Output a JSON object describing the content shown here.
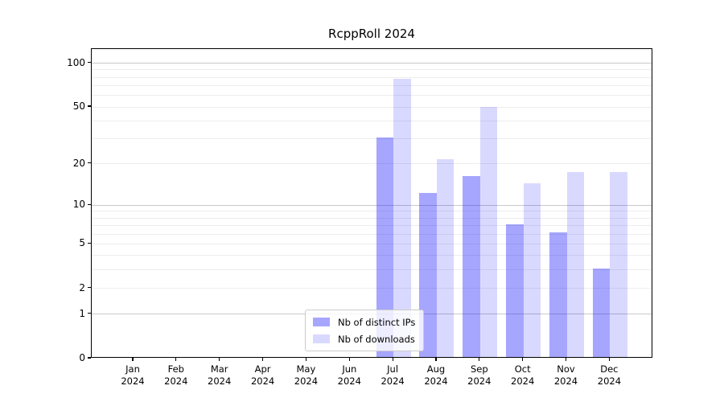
{
  "chart_data": {
    "type": "bar",
    "title": "RcppRoll 2024",
    "categories": [
      "Jan",
      "Feb",
      "Mar",
      "Apr",
      "May",
      "Jun",
      "Jul",
      "Aug",
      "Sep",
      "Oct",
      "Nov",
      "Dec"
    ],
    "x_year_label": "2024",
    "series": [
      {
        "name": "Nb of distinct IPs",
        "color": "#0000ff",
        "alpha": 0.35,
        "values": [
          0,
          0,
          0,
          0,
          0,
          0,
          30,
          12,
          16,
          7,
          6,
          3
        ]
      },
      {
        "name": "Nb of downloads",
        "color": "#0000ff",
        "alpha": 0.15,
        "values": [
          0,
          0,
          0,
          0,
          0,
          0,
          76,
          21,
          49,
          14,
          17,
          17
        ]
      }
    ],
    "yscale": "log1p",
    "ylim": [
      0,
      125
    ],
    "ytick_labels": [
      "0",
      "1",
      "2",
      "5",
      "10",
      "20",
      "50",
      "100"
    ],
    "ytick_values": [
      0,
      1,
      2,
      5,
      10,
      20,
      50,
      100
    ],
    "major_gridlines": [
      1,
      10,
      100
    ],
    "minor_gridlines": [
      2,
      3,
      4,
      5,
      6,
      7,
      8,
      9,
      20,
      30,
      40,
      50,
      60,
      70,
      80,
      90
    ],
    "grid": true,
    "legend_position": "lower center",
    "colors": {
      "spine": "#000000",
      "major_grid": "#c9c9c9",
      "minor_grid": "#ededed",
      "background": "#ffffff"
    }
  }
}
